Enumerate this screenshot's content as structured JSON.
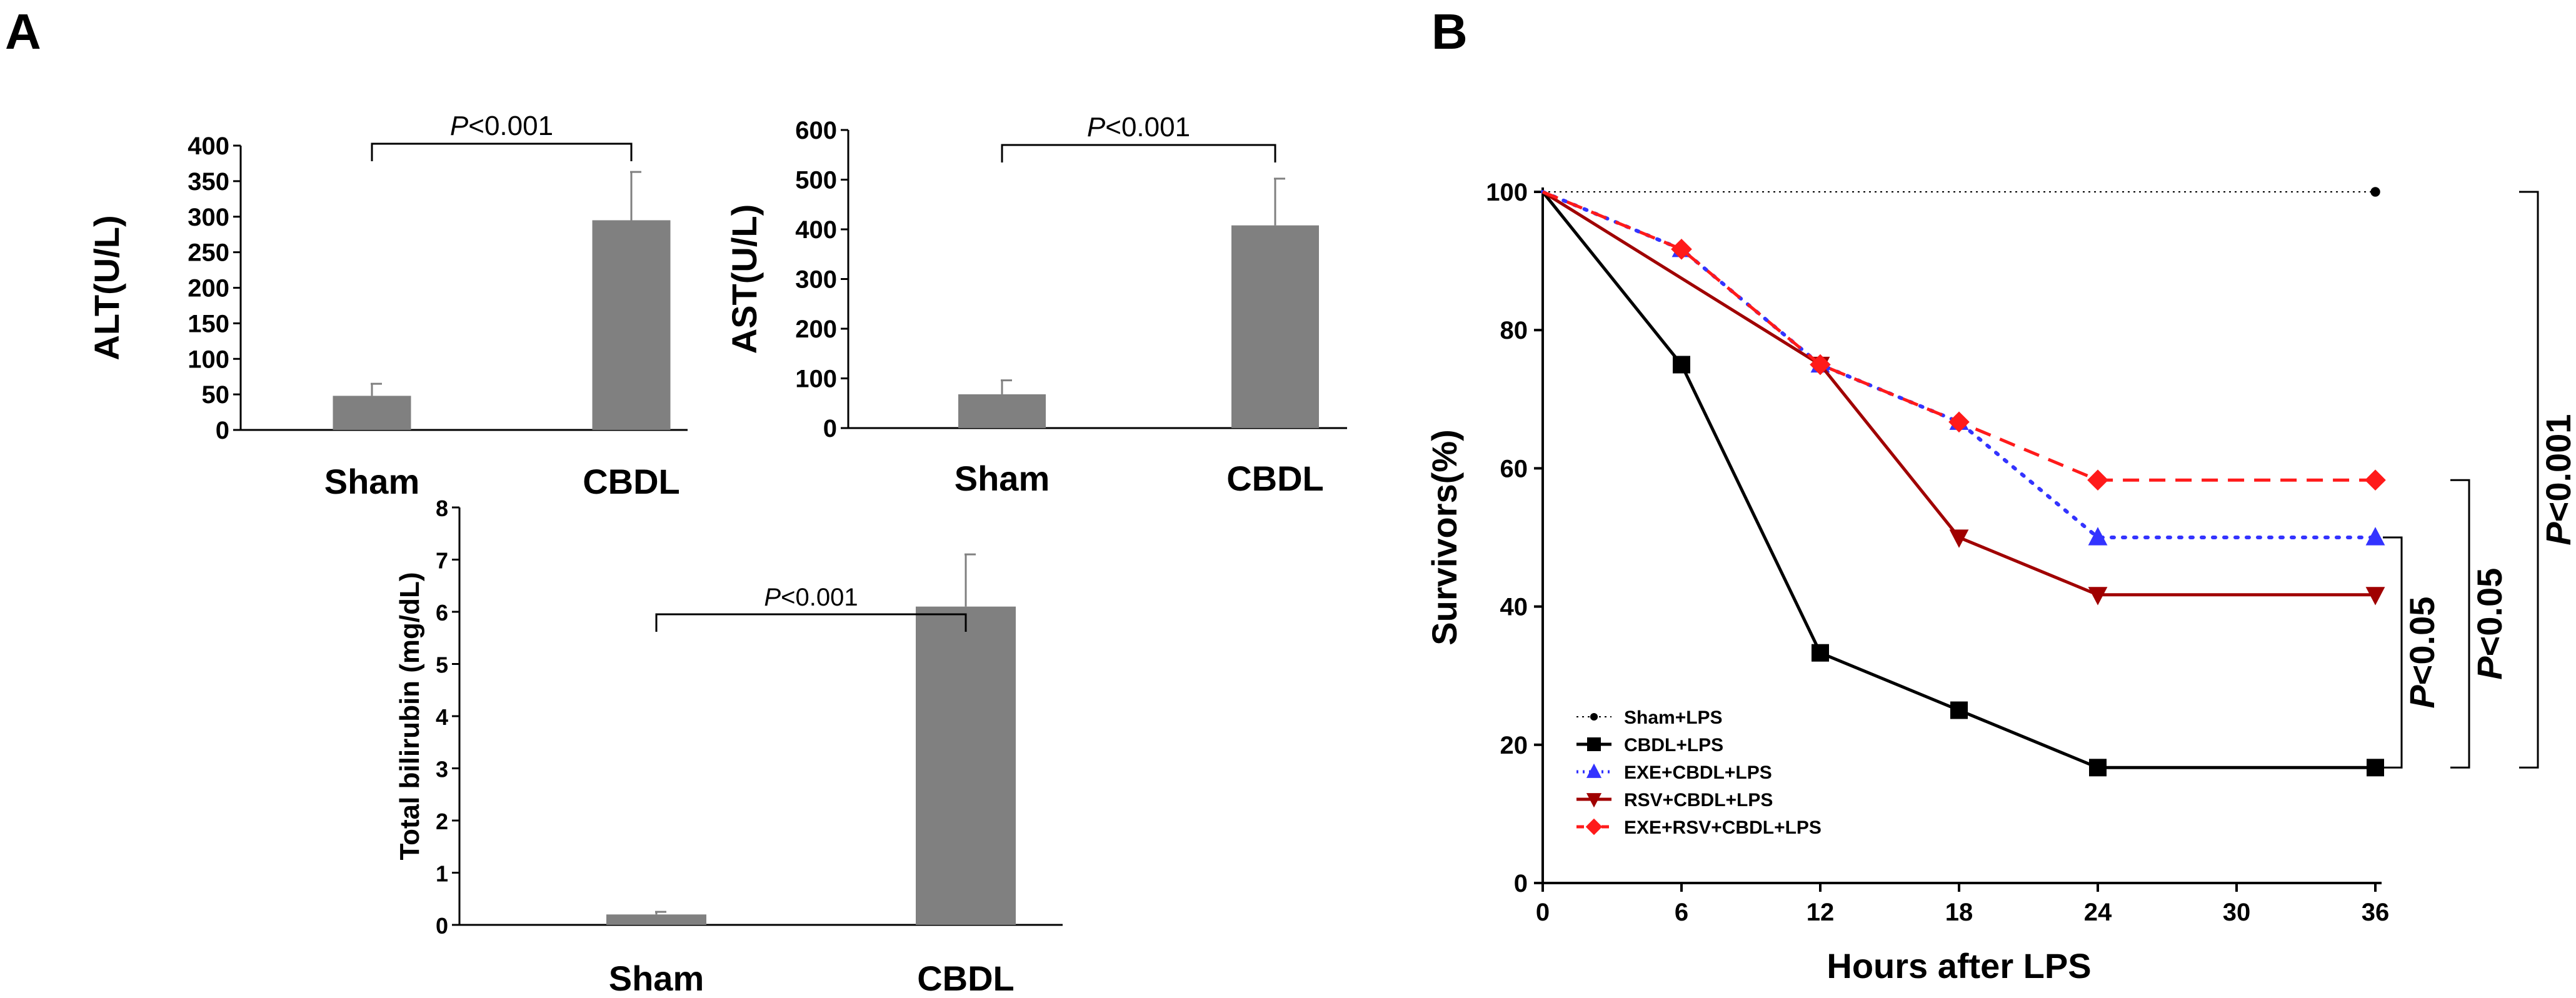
{
  "panel_a_label": "A",
  "panel_b_label": "B",
  "chart_data": [
    {
      "type": "bar",
      "ylabel": "ALT(U/L)",
      "categories": [
        "Sham",
        "CBDL"
      ],
      "values": [
        48,
        295
      ],
      "errors": [
        17,
        68
      ],
      "ylim": [
        0,
        400
      ],
      "yticks": [
        "0",
        "50",
        "100",
        "150",
        "200",
        "250",
        "300",
        "350",
        "400"
      ],
      "pvalue": {
        "italic": "P",
        "text": "<0.001"
      },
      "bar_color": "#808080"
    },
    {
      "type": "bar",
      "ylabel": "AST(U/L)",
      "categories": [
        "Sham",
        "CBDL"
      ],
      "values": [
        68,
        408
      ],
      "errors": [
        28,
        94
      ],
      "ylim": [
        0,
        600
      ],
      "yticks": [
        "0",
        "100",
        "200",
        "300",
        "400",
        "500",
        "600"
      ],
      "pvalue": {
        "italic": "P",
        "text": "<0.001"
      },
      "bar_color": "#808080"
    },
    {
      "type": "bar",
      "ylabel": "Total bilirubin (mg/dL)",
      "categories": [
        "Sham",
        "CBDL"
      ],
      "values": [
        0.2,
        6.1
      ],
      "errors": [
        0.05,
        1.0
      ],
      "ylim": [
        0,
        8
      ],
      "yticks": [
        "0",
        "1",
        "2",
        "3",
        "4",
        "5",
        "6",
        "7",
        "8"
      ],
      "pvalue": {
        "italic": "P",
        "text": "<0.001"
      },
      "bar_color": "#808080"
    },
    {
      "type": "line",
      "xlabel": "Hours after LPS",
      "ylabel": "Survivors(%)",
      "x": [
        0,
        6,
        12,
        18,
        24,
        36
      ],
      "xlim": [
        0,
        36
      ],
      "ylim": [
        0,
        100
      ],
      "xticks": [
        "0",
        "6",
        "12",
        "18",
        "24",
        "30",
        "36"
      ],
      "yticks": [
        "0",
        "20",
        "40",
        "60",
        "80",
        "100"
      ],
      "series": [
        {
          "name": "Sham+LPS",
          "x": [
            0,
            36
          ],
          "values": [
            100,
            100
          ],
          "color": "#000000",
          "marker": "circle",
          "dash": "dotted-thin"
        },
        {
          "name": "CBDL+LPS",
          "x": [
            0,
            6,
            12,
            18,
            24,
            36
          ],
          "values": [
            100,
            75,
            33.3,
            25,
            16.7,
            16.7
          ],
          "color": "#000000",
          "marker": "square",
          "dash": "solid"
        },
        {
          "name": "EXE+CBDL+LPS",
          "x": [
            0,
            6,
            12,
            18,
            24,
            36
          ],
          "values": [
            100,
            91.7,
            75,
            66.7,
            50,
            50
          ],
          "color": "#3333ff",
          "marker": "triangle-up",
          "dash": "dotted"
        },
        {
          "name": "RSV+CBDL+LPS",
          "x": [
            0,
            12,
            18,
            24,
            36
          ],
          "values": [
            100,
            75,
            50,
            41.7,
            41.7
          ],
          "color": "#a00000",
          "marker": "triangle-down",
          "dash": "solid"
        },
        {
          "name": "EXE+RSV+CBDL+LPS",
          "x": [
            0,
            6,
            12,
            18,
            24,
            36
          ],
          "values": [
            100,
            91.7,
            75,
            66.7,
            58.3,
            58.3
          ],
          "color": "#ff1a1a",
          "marker": "diamond",
          "dash": "dashed"
        }
      ],
      "comparisons": [
        {
          "italic": "P",
          "text": "<0.05",
          "from": 50,
          "to": 16.7
        },
        {
          "italic": "P",
          "text": "<0.05",
          "from": 58.3,
          "to": 16.7
        },
        {
          "italic": "P",
          "text": "<0.001",
          "from": 100,
          "to": 16.7
        }
      ]
    }
  ]
}
